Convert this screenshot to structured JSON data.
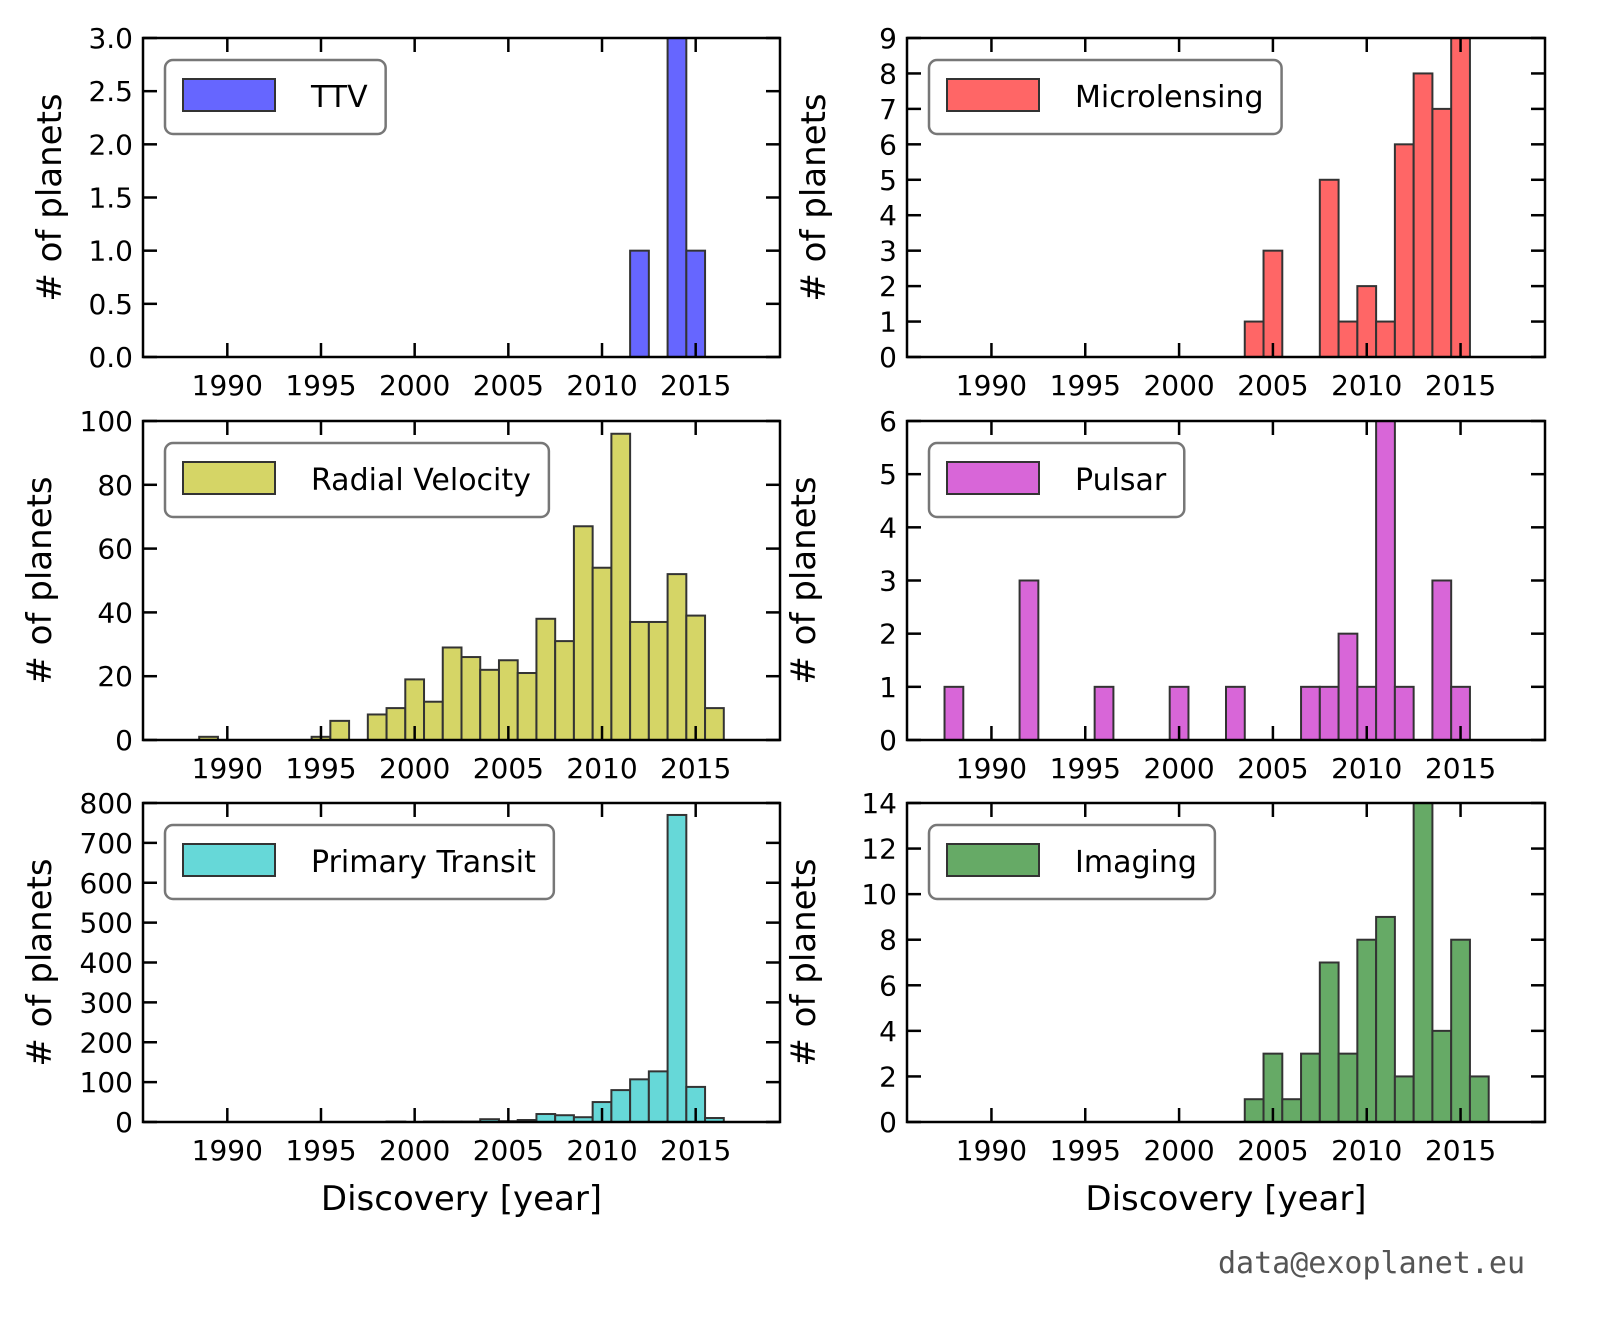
{
  "chart_data": [
    {
      "type": "histogram",
      "ylabel": "# of planets",
      "legend": "upper left",
      "bins": [
        1987.5,
        1988.5,
        1989.5,
        1990.5,
        1991.5,
        1992.5,
        1993.5,
        1994.5,
        1995.5,
        1996.5,
        1997.5,
        1998.5,
        1999.5,
        2000.5,
        2001.5,
        2002.5,
        2003.5,
        2004.5,
        2005.5,
        2006.5,
        2007.5,
        2008.5,
        2009.5,
        2010.5,
        2011.5,
        2012.5,
        2013.5,
        2014.5,
        2015.5,
        2016.5
      ],
      "series": [
        {
          "name": "TTV",
          "color": "#6666ff",
          "values": [
            0,
            0,
            0,
            0,
            0,
            0,
            0,
            0,
            0,
            0,
            0,
            0,
            0,
            0,
            0,
            0,
            0,
            0,
            0,
            0,
            0,
            0,
            0,
            0,
            1,
            0,
            3,
            1,
            0
          ]
        }
      ],
      "xlim": [
        1985.5,
        2019.5
      ],
      "xticks": [
        1990,
        1995,
        2000,
        2005,
        2010,
        2015
      ],
      "ylim": [
        0,
        3
      ],
      "yticks": [
        {
          "value": 0,
          "label": "0.0"
        },
        0.5,
        {
          "value": 1,
          "label": "1.0"
        },
        1.5,
        {
          "value": 2,
          "label": "2.0"
        },
        2.5,
        {
          "value": 3,
          "label": "3.0"
        }
      ]
    },
    {
      "type": "histogram",
      "ylabel": "# of planets",
      "legend": "upper left",
      "bins": [
        1987.5,
        1988.5,
        1989.5,
        1990.5,
        1991.5,
        1992.5,
        1993.5,
        1994.5,
        1995.5,
        1996.5,
        1997.5,
        1998.5,
        1999.5,
        2000.5,
        2001.5,
        2002.5,
        2003.5,
        2004.5,
        2005.5,
        2006.5,
        2007.5,
        2008.5,
        2009.5,
        2010.5,
        2011.5,
        2012.5,
        2013.5,
        2014.5,
        2015.5,
        2016.5
      ],
      "series": [
        {
          "name": "Microlensing",
          "color": "#ff6666",
          "values": [
            0,
            0,
            0,
            0,
            0,
            0,
            0,
            0,
            0,
            0,
            0,
            0,
            0,
            0,
            0,
            0,
            1,
            3,
            0,
            0,
            5,
            1,
            2,
            1,
            6,
            8,
            7,
            9,
            0
          ]
        }
      ],
      "xlim": [
        1985.5,
        2019.5
      ],
      "xticks": [
        1990,
        1995,
        2000,
        2005,
        2010,
        2015
      ],
      "ylim": [
        0,
        9
      ],
      "yticks": [
        0,
        1,
        2,
        3,
        4,
        5,
        6,
        7,
        8,
        9
      ]
    },
    {
      "type": "histogram",
      "ylabel": "# of planets",
      "legend": "upper left",
      "bins": [
        1987.5,
        1988.5,
        1989.5,
        1990.5,
        1991.5,
        1992.5,
        1993.5,
        1994.5,
        1995.5,
        1996.5,
        1997.5,
        1998.5,
        1999.5,
        2000.5,
        2001.5,
        2002.5,
        2003.5,
        2004.5,
        2005.5,
        2006.5,
        2007.5,
        2008.5,
        2009.5,
        2010.5,
        2011.5,
        2012.5,
        2013.5,
        2014.5,
        2015.5,
        2016.5
      ],
      "series": [
        {
          "name": "Radial Velocity",
          "color": "#d5d566",
          "values": [
            0,
            1,
            0,
            0,
            0,
            0,
            0,
            1,
            6,
            0,
            8,
            10,
            19,
            12,
            29,
            26,
            22,
            25,
            21,
            38,
            31,
            67,
            54,
            96,
            37,
            37,
            52,
            39,
            10
          ]
        }
      ],
      "xlim": [
        1985.5,
        2019.5
      ],
      "xticks": [
        1990,
        1995,
        2000,
        2005,
        2010,
        2015
      ],
      "ylim": [
        0,
        100
      ],
      "yticks": [
        0,
        20,
        40,
        60,
        80,
        100
      ]
    },
    {
      "type": "histogram",
      "ylabel": "# of planets",
      "legend": "upper left",
      "bins": [
        1987.5,
        1988.5,
        1989.5,
        1990.5,
        1991.5,
        1992.5,
        1993.5,
        1994.5,
        1995.5,
        1996.5,
        1997.5,
        1998.5,
        1999.5,
        2000.5,
        2001.5,
        2002.5,
        2003.5,
        2004.5,
        2005.5,
        2006.5,
        2007.5,
        2008.5,
        2009.5,
        2010.5,
        2011.5,
        2012.5,
        2013.5,
        2014.5,
        2015.5,
        2016.5
      ],
      "series": [
        {
          "name": "Pulsar",
          "color": "#d866d8",
          "values": [
            1,
            0,
            0,
            0,
            3,
            0,
            0,
            0,
            1,
            0,
            0,
            0,
            1,
            0,
            0,
            1,
            0,
            0,
            0,
            1,
            1,
            2,
            1,
            6,
            1,
            0,
            3,
            1,
            0
          ]
        }
      ],
      "xlim": [
        1985.5,
        2019.5
      ],
      "xticks": [
        1990,
        1995,
        2000,
        2005,
        2010,
        2015
      ],
      "ylim": [
        0,
        6
      ],
      "yticks": [
        0,
        1,
        2,
        3,
        4,
        5,
        6
      ]
    },
    {
      "type": "histogram",
      "ylabel": "# of planets",
      "xlabel": "Discovery [year]",
      "legend": "upper left",
      "bins": [
        1987.5,
        1988.5,
        1989.5,
        1990.5,
        1991.5,
        1992.5,
        1993.5,
        1994.5,
        1995.5,
        1996.5,
        1997.5,
        1998.5,
        1999.5,
        2000.5,
        2001.5,
        2002.5,
        2003.5,
        2004.5,
        2005.5,
        2006.5,
        2007.5,
        2008.5,
        2009.5,
        2010.5,
        2011.5,
        2012.5,
        2013.5,
        2014.5,
        2015.5,
        2016.5
      ],
      "series": [
        {
          "name": "Primary Transit",
          "color": "#66d8d8",
          "values": [
            0,
            0,
            0,
            0,
            0,
            0,
            0,
            0,
            0,
            0,
            0,
            1,
            0,
            1,
            1,
            1,
            7,
            2,
            5,
            20,
            17,
            12,
            50,
            80,
            107,
            127,
            770,
            88,
            10
          ]
        }
      ],
      "xlim": [
        1985.5,
        2019.5
      ],
      "xticks": [
        1990,
        1995,
        2000,
        2005,
        2010,
        2015
      ],
      "ylim": [
        0,
        800
      ],
      "yticks": [
        0,
        100,
        200,
        300,
        400,
        500,
        600,
        700,
        800
      ]
    },
    {
      "type": "histogram",
      "ylabel": "# of planets",
      "xlabel": "Discovery [year]",
      "legend": "upper left",
      "bins": [
        1987.5,
        1988.5,
        1989.5,
        1990.5,
        1991.5,
        1992.5,
        1993.5,
        1994.5,
        1995.5,
        1996.5,
        1997.5,
        1998.5,
        1999.5,
        2000.5,
        2001.5,
        2002.5,
        2003.5,
        2004.5,
        2005.5,
        2006.5,
        2007.5,
        2008.5,
        2009.5,
        2010.5,
        2011.5,
        2012.5,
        2013.5,
        2014.5,
        2015.5,
        2016.5
      ],
      "series": [
        {
          "name": "Imaging",
          "color": "#66aa66",
          "values": [
            0,
            0,
            0,
            0,
            0,
            0,
            0,
            0,
            0,
            0,
            0,
            0,
            0,
            0,
            0,
            0,
            1,
            3,
            1,
            3,
            7,
            3,
            8,
            9,
            2,
            14,
            4,
            8,
            2
          ]
        }
      ],
      "xlim": [
        1985.5,
        2019.5
      ],
      "xticks": [
        1990,
        1995,
        2000,
        2005,
        2010,
        2015
      ],
      "ylim": [
        0,
        14
      ],
      "yticks": [
        0,
        2,
        4,
        6,
        8,
        10,
        12,
        14
      ]
    }
  ],
  "footer": "data@exoplanet.eu"
}
